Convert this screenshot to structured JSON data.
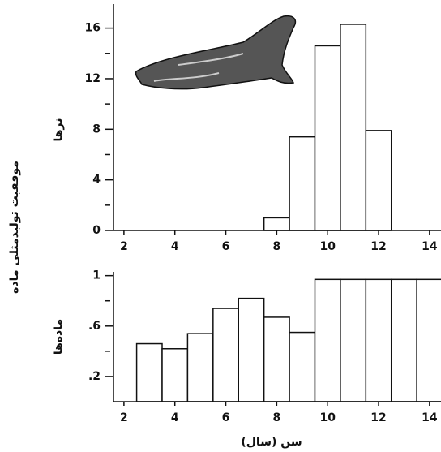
{
  "y_label": "موفقیت تولیدمثلی ماده",
  "x_label": "سن (سال)",
  "chart_data": [
    {
      "type": "bar",
      "y_label": "نرها",
      "x": [
        8,
        9,
        10,
        11,
        12
      ],
      "values": [
        1,
        7.4,
        14.6,
        16.3,
        7.9
      ],
      "color": "#ffffff",
      "xlim": [
        1.59,
        14.45
      ],
      "xticks": [
        2,
        4,
        6,
        8,
        10,
        12,
        14
      ],
      "ylim": [
        0,
        17.9
      ],
      "yticks": [
        0,
        4,
        8,
        12,
        16
      ],
      "yminor": [
        2,
        6,
        10,
        14
      ]
    },
    {
      "type": "bar",
      "y_label": "ماده‌ها",
      "x": [
        3,
        4,
        5,
        6,
        7,
        8,
        9,
        10,
        11,
        12,
        13,
        14
      ],
      "values": [
        0.46,
        0.42,
        0.54,
        0.74,
        0.82,
        0.67,
        0.55,
        0.97,
        0.97,
        0.97,
        0.97,
        0.97
      ],
      "color": "#ffffff",
      "xlim": [
        1.59,
        14.45
      ],
      "xticks": [
        2,
        4,
        6,
        8,
        10,
        12,
        14
      ],
      "ylim": [
        0,
        1.03
      ],
      "yticks": [
        {
          "value": 0.2,
          "label": ".2"
        },
        {
          "value": 0.6,
          "label": ".6"
        },
        1
      ],
      "yminor": [
        0.4,
        0.8
      ]
    }
  ]
}
